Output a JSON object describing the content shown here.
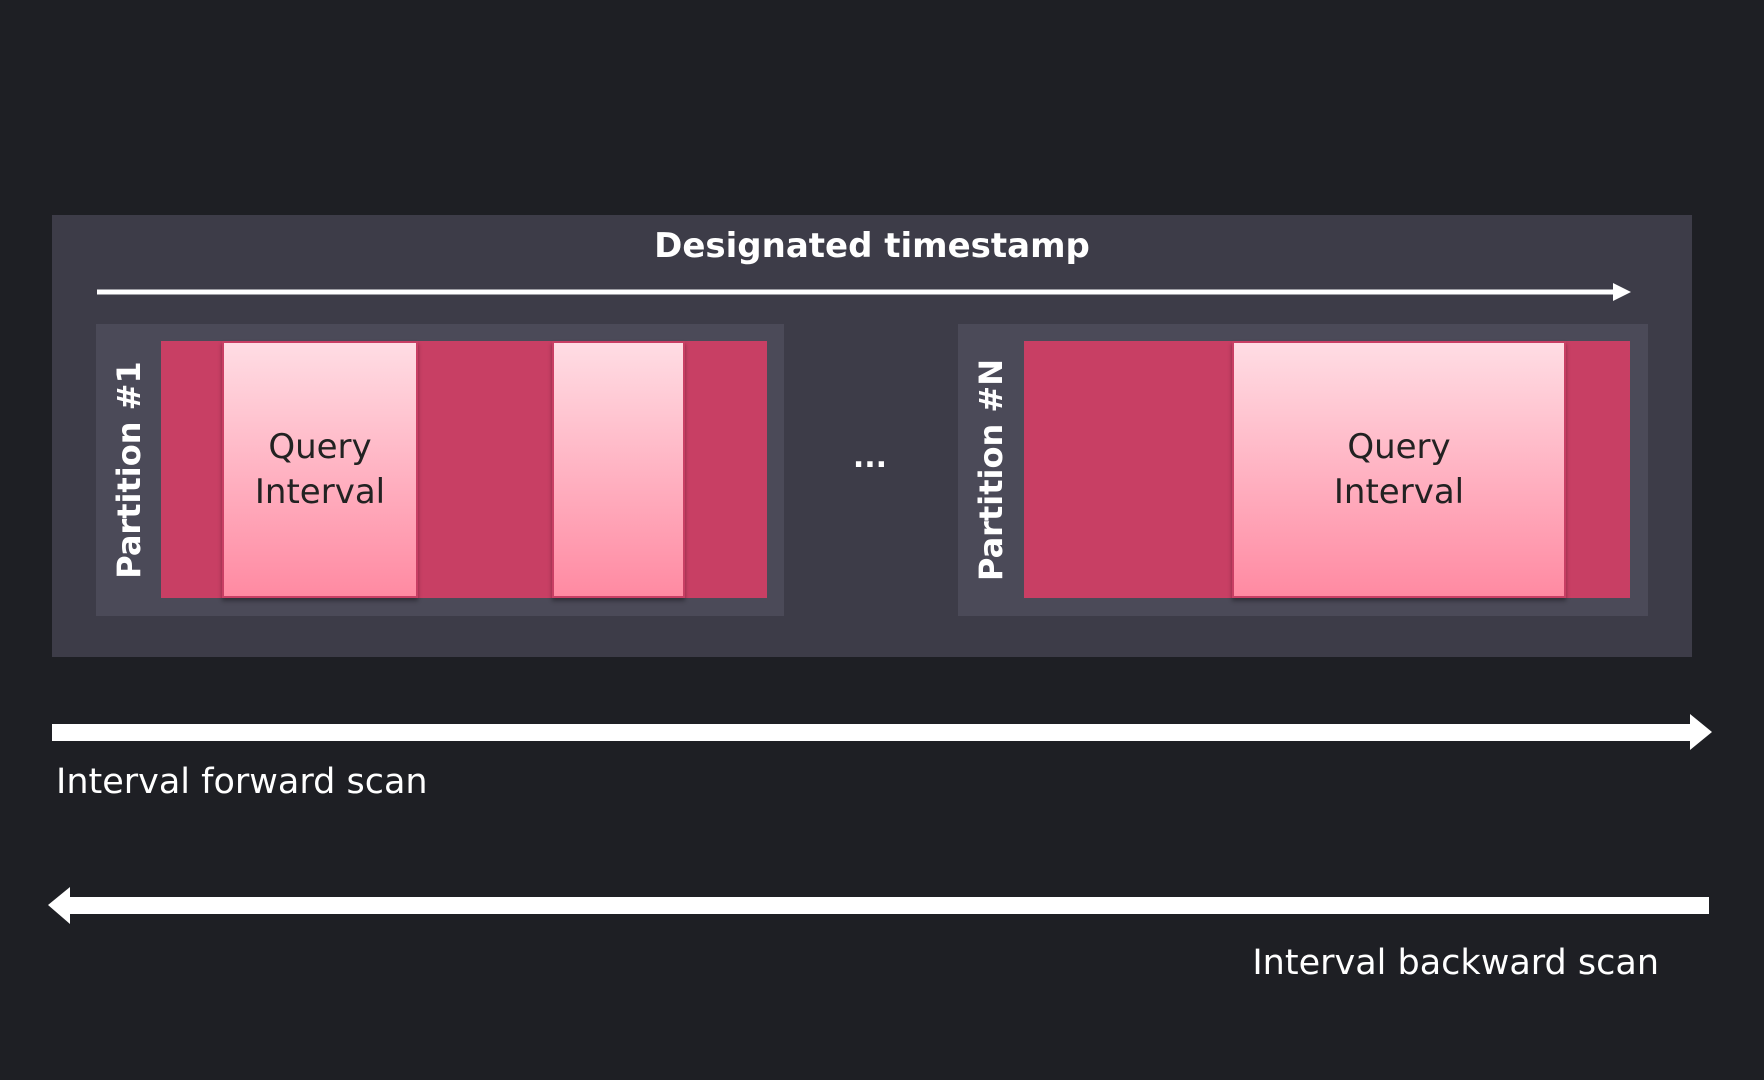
{
  "title": "Designated timestamp",
  "partitions": [
    {
      "label": "Partition #1",
      "query_interval_label": [
        "Query",
        "Interval"
      ]
    },
    {
      "label": "Partition #N",
      "query_interval_label": [
        "Query",
        "Interval"
      ]
    }
  ],
  "ellipsis": "...",
  "forward_scan": "Interval forward scan",
  "backward_scan": "Interval backward scan",
  "colors": {
    "background": "#1e1f24",
    "panel": "#3d3c48",
    "partition": "#4b4a58",
    "data": "#c83f64",
    "query_interval": "#ffb3c3"
  }
}
